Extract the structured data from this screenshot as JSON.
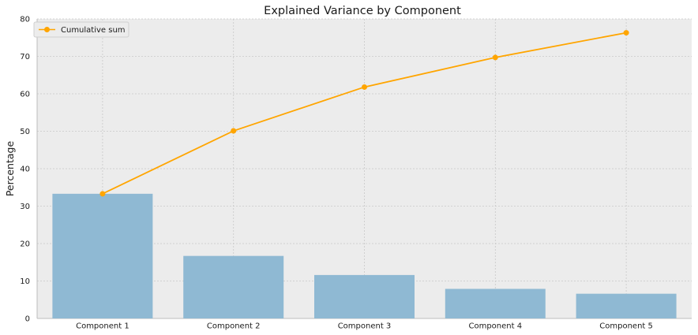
{
  "chart_data": {
    "type": "bar",
    "title": "Explained Variance by Component",
    "xlabel": "",
    "ylabel": "Percentage",
    "categories": [
      "Component 1",
      "Component 2",
      "Component 3",
      "Component 4",
      "Component 5"
    ],
    "series": [
      {
        "type": "bar",
        "values": [
          33.3,
          16.7,
          11.6,
          7.9,
          6.6
        ],
        "color": "#8fb9d3"
      },
      {
        "name": "Cumulative sum",
        "type": "line",
        "marker": "circle",
        "values": [
          33.3,
          50.1,
          61.8,
          69.7,
          76.3
        ],
        "color": "#ffa500"
      }
    ],
    "ylim": [
      0,
      80
    ],
    "yticks": [
      0,
      10,
      20,
      30,
      40,
      50,
      60,
      70,
      80
    ],
    "grid": true,
    "legend": {
      "position": "top-left",
      "entries": [
        "Cumulative sum"
      ]
    },
    "background": "#ececec"
  }
}
